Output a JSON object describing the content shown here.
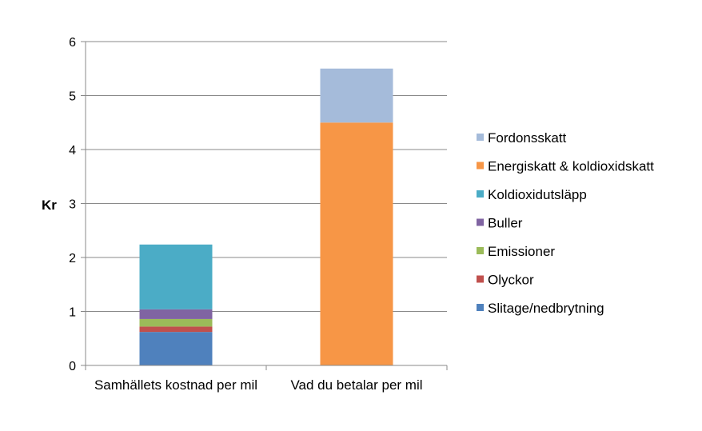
{
  "chart_data": {
    "type": "bar",
    "stacked": true,
    "title": "",
    "xlabel": "",
    "ylabel": "Kr",
    "ylim": [
      0,
      6
    ],
    "yticks": [
      0,
      1,
      2,
      3,
      4,
      5,
      6
    ],
    "grid": true,
    "legend_position": "right",
    "categories": [
      "Samhällets kostnad per mil",
      "Vad du betalar per mil"
    ],
    "series": [
      {
        "name": "Slitage/nedbrytning",
        "color": "#4F81BD",
        "values": [
          0.62,
          0
        ]
      },
      {
        "name": "Olyckor",
        "color": "#C0504D",
        "values": [
          0.1,
          0
        ]
      },
      {
        "name": "Emissioner",
        "color": "#9BBB59",
        "values": [
          0.14,
          0
        ]
      },
      {
        "name": "Buller",
        "color": "#8064A2",
        "values": [
          0.18,
          0
        ]
      },
      {
        "name": "Koldioxidutsläpp",
        "color": "#4BACC6",
        "values": [
          1.2,
          0
        ]
      },
      {
        "name": "Energiskatt & koldioxidskatt",
        "color": "#F79646",
        "values": [
          0,
          4.5
        ]
      },
      {
        "name": "Fordonsskatt",
        "color": "#A5BBDA",
        "values": [
          0,
          1.0
        ]
      }
    ]
  }
}
